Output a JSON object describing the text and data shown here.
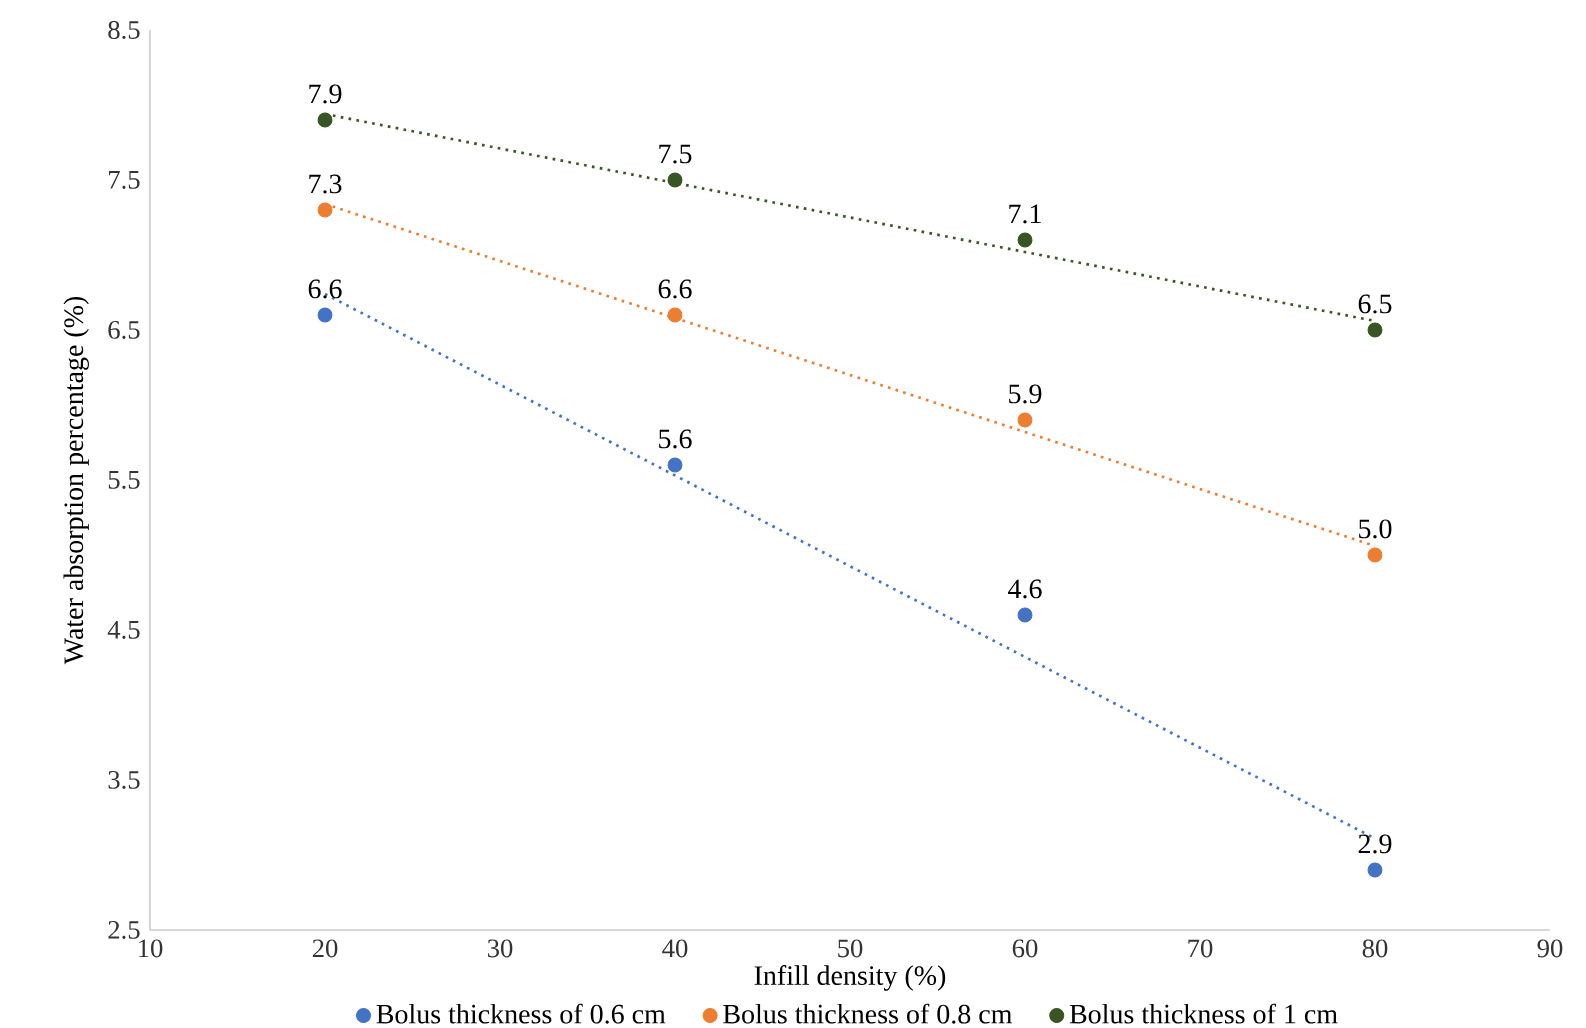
{
  "chart_data": {
    "type": "scatter",
    "xlabel": "Infill density (%)",
    "ylabel": "Water absorption percentage (%)",
    "xlim": [
      10,
      90
    ],
    "xticks": [
      10,
      20,
      30,
      40,
      50,
      60,
      70,
      80,
      90
    ],
    "ylim": [
      2.5,
      8.5
    ],
    "yticks": [
      2.5,
      3.5,
      4.5,
      5.5,
      6.5,
      7.5,
      8.5
    ],
    "grid": false,
    "legend": "bottom",
    "marker": "circle",
    "series": [
      {
        "name": "Bolus thickness of 0.6 cm",
        "color": "#4472c4",
        "x": [
          20,
          40,
          60,
          80
        ],
        "values": [
          6.6,
          5.6,
          4.6,
          2.9
        ],
        "value_labels": [
          "6.6",
          "5.6",
          "4.6",
          "2.9"
        ]
      },
      {
        "name": "Bolus thickness of 0.8 cm",
        "color": "#ed7d31",
        "x": [
          20,
          40,
          60,
          80
        ],
        "values": [
          7.3,
          6.6,
          5.9,
          5.0
        ],
        "value_labels": [
          "7.3",
          "6.6",
          "5.9",
          "5.0"
        ]
      },
      {
        "name": "Bolus thickness of 1 cm",
        "color": "#375623",
        "x": [
          20,
          40,
          60,
          80
        ],
        "values": [
          7.9,
          7.5,
          7.1,
          6.5
        ],
        "value_labels": [
          "7.9",
          "7.5",
          "7.1",
          "6.5"
        ]
      },
      {
        "type": "line",
        "color": "#4472c4",
        "x": [
          20,
          80
        ],
        "values": [
          6.74,
          3.11
        ],
        "line_style": "dotted",
        "marker": "none"
      },
      {
        "type": "line",
        "color": "#ed7d31",
        "x": [
          20,
          80
        ],
        "values": [
          7.34,
          5.06
        ],
        "line_style": "dotted",
        "marker": "none"
      },
      {
        "type": "line",
        "color": "#375623",
        "x": [
          20,
          80
        ],
        "values": [
          7.94,
          6.56
        ],
        "line_style": "dotted",
        "marker": "none"
      }
    ]
  }
}
